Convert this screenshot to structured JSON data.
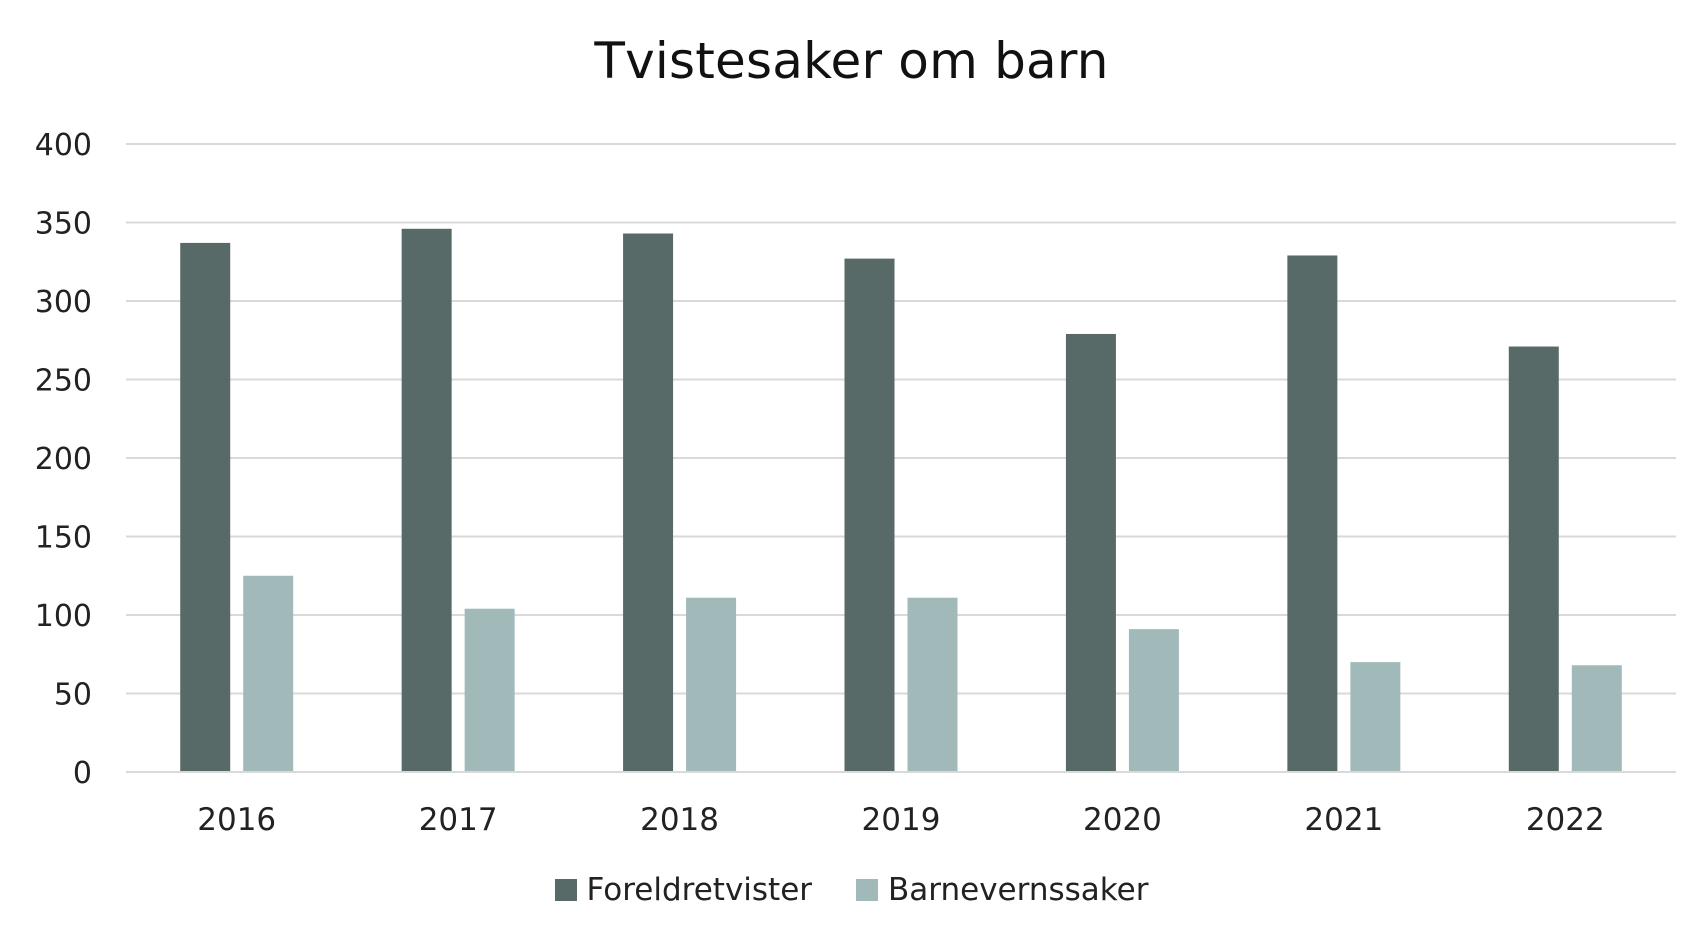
{
  "chart_data": {
    "type": "bar",
    "title": "Tvistesaker om barn",
    "xlabel": "",
    "ylabel": "",
    "categories": [
      "2016",
      "2017",
      "2018",
      "2019",
      "2020",
      "2021",
      "2022"
    ],
    "series": [
      {
        "name": "Foreldretvister",
        "color": "#586a67",
        "values": [
          337,
          346,
          343,
          327,
          279,
          329,
          271
        ]
      },
      {
        "name": "Barnevernssaker",
        "color": "#a2b9ba",
        "values": [
          125,
          104,
          111,
          111,
          91,
          70,
          68
        ]
      }
    ],
    "ylim": [
      0,
      400
    ],
    "yticks": [
      0,
      50,
      100,
      150,
      200,
      250,
      300,
      350,
      400
    ],
    "grid": true,
    "legend_position": "bottom"
  }
}
